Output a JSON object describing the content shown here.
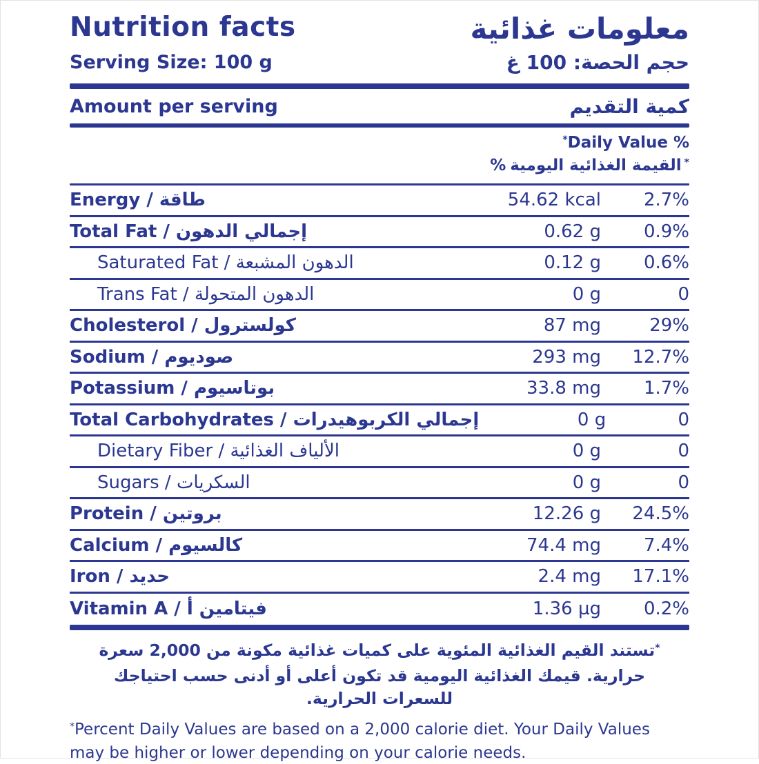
{
  "header": {
    "title_en": "Nutrition facts",
    "title_ar": "معلومات غذائية",
    "serving_en": "Serving Size: 100 g",
    "serving_ar": "حجم الحصة: 100 غ"
  },
  "amount_per_serving": {
    "en": "Amount per serving",
    "ar": "كمية التقديم"
  },
  "daily_value_header": {
    "asterisk": "*",
    "en": "Daily Value %",
    "percent_sign": "%",
    "ar": "القيمة الغذائية اليومية"
  },
  "rows": [
    {
      "label": "Energy / طاقة",
      "amount": "54.62 kcal",
      "percent": "2.7%"
    },
    {
      "label": "Total Fat / إجمالي الدهون",
      "amount": "0.62 g",
      "percent": "0.9%"
    },
    {
      "label": "Saturated Fat / الدهون المشبعة",
      "amount": "0.12 g",
      "percent": "0.6%"
    },
    {
      "label": "Trans Fat / الدهون المتحولة",
      "amount": "0 g",
      "percent": "0"
    },
    {
      "label": "Cholesterol / كولسترول",
      "amount": "87 mg",
      "percent": "29%"
    },
    {
      "label": "Sodium / صوديوم",
      "amount": "293 mg",
      "percent": "12.7%"
    },
    {
      "label": "Potassium / بوتاسيوم",
      "amount": "33.8 mg",
      "percent": "1.7%"
    },
    {
      "label": "Total Carbohydrates / إجمالي الكربوهيدرات",
      "amount": "0 g",
      "percent": "0"
    },
    {
      "label": "Dietary Fiber / الألياف الغذائية",
      "amount": "0 g",
      "percent": "0"
    },
    {
      "label": "Sugars / السكريات",
      "amount": "0 g",
      "percent": "0"
    },
    {
      "label": "Protein / بروتين",
      "amount": "12.26 g",
      "percent": "24.5%"
    },
    {
      "label": "Calcium / كالسيوم",
      "amount": "74.4 mg",
      "percent": "7.4%"
    },
    {
      "label": "Iron / حديد",
      "amount": "2.4 mg",
      "percent": "17.1%"
    },
    {
      "label": "Vitamin A / فيتامين أ",
      "amount": "1.36 µg",
      "percent": "0.2%"
    }
  ],
  "footnotes": {
    "asterisk": "*",
    "ar": "تستند القيم الغذائية المئوية على كميات غذائية مكونة من 2,000 سعرة حرارية. قيمك الغذائية اليومية قد تكون أعلى أو أدنى حسب احتياجك للسعرات الحرارية.",
    "en": "Percent Daily Values are based on a 2,000 calorie diet. Your Daily Values may be higher or lower depending on your calorie needs."
  },
  "colors": {
    "navy": "#2b3790",
    "background": "#ffffff"
  }
}
